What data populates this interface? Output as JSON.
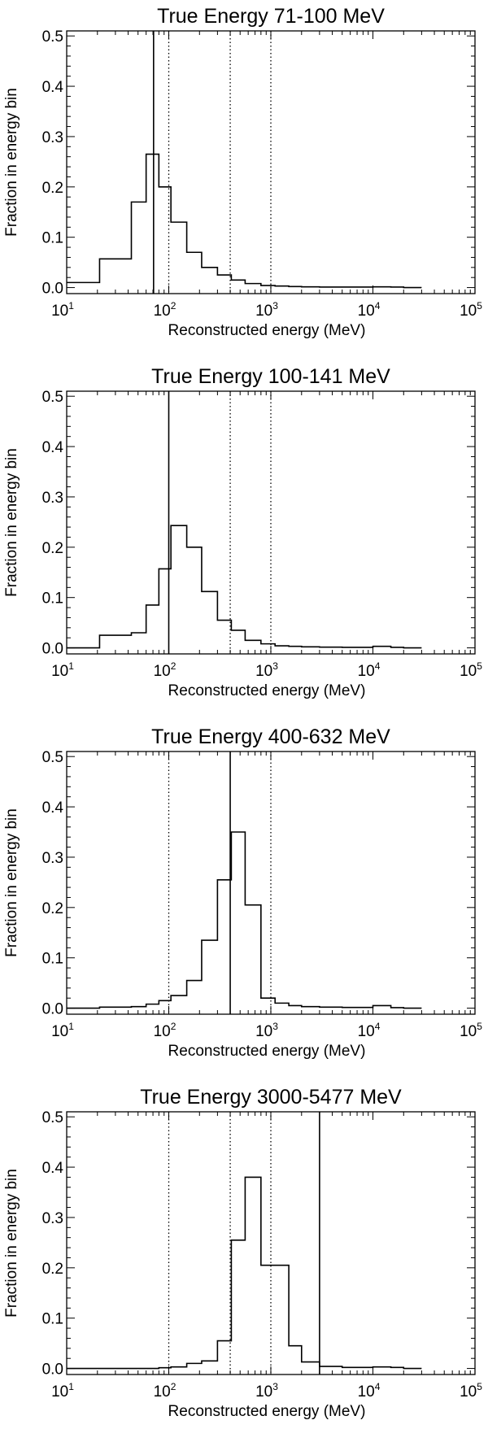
{
  "chart_data": [
    {
      "type": "histogram",
      "title": "True Energy 71-100 MeV",
      "xlabel": "Reconstructed energy (MeV)",
      "ylabel": "Fraction in energy bin",
      "xscale": "log",
      "xlim": [
        10,
        100000
      ],
      "ylim": [
        -0.012,
        0.51
      ],
      "yticks": [
        "0.0",
        "0.1",
        "0.2",
        "0.3",
        "0.4",
        "0.5"
      ],
      "xticks": [
        {
          "base": "10",
          "exp": "1"
        },
        {
          "base": "10",
          "exp": "2"
        },
        {
          "base": "10",
          "exp": "3"
        },
        {
          "base": "10",
          "exp": "4"
        },
        {
          "base": "10",
          "exp": "5"
        }
      ],
      "bin_edges": [
        10,
        21,
        43,
        60,
        80,
        105,
        150,
        210,
        300,
        410,
        560,
        800,
        1100,
        1500,
        2000,
        3000,
        5000,
        10000,
        15000,
        20000,
        30000
      ],
      "values": [
        0.01,
        0.057,
        0.17,
        0.265,
        0.2,
        0.13,
        0.07,
        0.04,
        0.025,
        0.015,
        0.008,
        0.004,
        0.003,
        0.002,
        0.0015,
        0.001,
        0.001,
        0.0015,
        0.001,
        0
      ],
      "solid_line": 71,
      "dotted_lines": [
        100,
        400,
        1000
      ]
    },
    {
      "type": "histogram",
      "title": "True Energy 100-141 MeV",
      "xlabel": "Reconstructed energy (MeV)",
      "ylabel": "Fraction in energy bin",
      "xscale": "log",
      "xlim": [
        10,
        100000
      ],
      "ylim": [
        -0.012,
        0.51
      ],
      "yticks": [
        "0.0",
        "0.1",
        "0.2",
        "0.3",
        "0.4",
        "0.5"
      ],
      "xticks": [
        {
          "base": "10",
          "exp": "1"
        },
        {
          "base": "10",
          "exp": "2"
        },
        {
          "base": "10",
          "exp": "3"
        },
        {
          "base": "10",
          "exp": "4"
        },
        {
          "base": "10",
          "exp": "5"
        }
      ],
      "bin_edges": [
        10,
        21,
        43,
        60,
        80,
        105,
        150,
        210,
        300,
        410,
        560,
        800,
        1100,
        1500,
        2000,
        3000,
        5000,
        10000,
        15000,
        20000,
        30000
      ],
      "values": [
        0.0,
        0.025,
        0.03,
        0.085,
        0.157,
        0.243,
        0.2,
        0.112,
        0.055,
        0.035,
        0.015,
        0.008,
        0.004,
        0.003,
        0.002,
        0.0015,
        0.001,
        0.003,
        0.001,
        0
      ],
      "solid_line": 100,
      "dotted_lines": [
        400,
        1000
      ]
    },
    {
      "type": "histogram",
      "title": "True Energy 400-632 MeV",
      "xlabel": "Reconstructed energy (MeV)",
      "ylabel": "Fraction in energy bin",
      "xscale": "log",
      "xlim": [
        10,
        100000
      ],
      "ylim": [
        -0.012,
        0.51
      ],
      "yticks": [
        "0.0",
        "0.1",
        "0.2",
        "0.3",
        "0.4",
        "0.5"
      ],
      "xticks": [
        {
          "base": "10",
          "exp": "1"
        },
        {
          "base": "10",
          "exp": "2"
        },
        {
          "base": "10",
          "exp": "3"
        },
        {
          "base": "10",
          "exp": "4"
        },
        {
          "base": "10",
          "exp": "5"
        }
      ],
      "bin_edges": [
        10,
        21,
        43,
        60,
        80,
        105,
        150,
        210,
        300,
        410,
        560,
        800,
        1100,
        1500,
        2000,
        3000,
        5000,
        10000,
        15000,
        20000,
        30000
      ],
      "values": [
        0.0,
        0.002,
        0.003,
        0.008,
        0.015,
        0.025,
        0.055,
        0.135,
        0.255,
        0.35,
        0.205,
        0.02,
        0.01,
        0.005,
        0.003,
        0.002,
        0.0015,
        0.005,
        0.001,
        0
      ],
      "solid_line": 400,
      "dotted_lines": [
        100,
        1000
      ]
    },
    {
      "type": "histogram",
      "title": "True Energy 3000-5477 MeV",
      "xlabel": "Reconstructed energy (MeV)",
      "ylabel": "Fraction in energy bin",
      "xscale": "log",
      "xlim": [
        10,
        100000
      ],
      "ylim": [
        -0.012,
        0.51
      ],
      "yticks": [
        "0.0",
        "0.1",
        "0.2",
        "0.3",
        "0.4",
        "0.5"
      ],
      "xticks": [
        {
          "base": "10",
          "exp": "1"
        },
        {
          "base": "10",
          "exp": "2"
        },
        {
          "base": "10",
          "exp": "3"
        },
        {
          "base": "10",
          "exp": "4"
        },
        {
          "base": "10",
          "exp": "5"
        }
      ],
      "bin_edges": [
        10,
        21,
        43,
        60,
        80,
        105,
        150,
        210,
        300,
        410,
        560,
        800,
        1100,
        1500,
        2000,
        3000,
        5000,
        10000,
        15000,
        20000,
        30000
      ],
      "values": [
        0.0,
        0.0,
        0.0,
        0.0,
        0.0015,
        0.003,
        0.01,
        0.015,
        0.055,
        0.255,
        0.38,
        0.205,
        0.205,
        0.045,
        0.013,
        0.004,
        0.002,
        0.003,
        0.002,
        0
      ],
      "solid_line": 3000,
      "dotted_lines": [
        100,
        400,
        1000
      ]
    }
  ]
}
